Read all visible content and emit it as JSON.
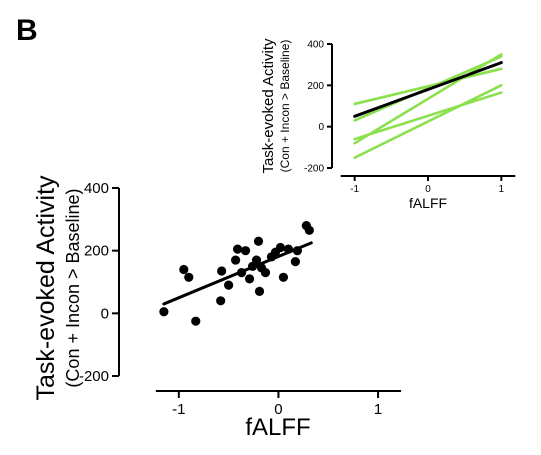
{
  "panel_label": "B",
  "chart_data": [
    {
      "type": "scatter",
      "xlabel": "fALFF",
      "ylabel": "Task-evoked Activity",
      "ylabel_sub": "(Con + Incon > Baseline)",
      "xlim": [
        -1.45,
        1.15
      ],
      "ylim": [
        -200,
        400
      ],
      "xticks": [
        -1,
        0,
        1
      ],
      "yticks": [
        -200,
        0,
        200,
        400
      ],
      "points": [
        {
          "x": -1.15,
          "y": 5
        },
        {
          "x": -0.95,
          "y": 140
        },
        {
          "x": -0.9,
          "y": 115
        },
        {
          "x": -0.83,
          "y": -25
        },
        {
          "x": -0.58,
          "y": 40
        },
        {
          "x": -0.57,
          "y": 135
        },
        {
          "x": -0.5,
          "y": 90
        },
        {
          "x": -0.43,
          "y": 170
        },
        {
          "x": -0.41,
          "y": 205
        },
        {
          "x": -0.37,
          "y": 130
        },
        {
          "x": -0.33,
          "y": 200
        },
        {
          "x": -0.29,
          "y": 110
        },
        {
          "x": -0.26,
          "y": 150
        },
        {
          "x": -0.22,
          "y": 170
        },
        {
          "x": -0.2,
          "y": 230
        },
        {
          "x": -0.19,
          "y": 70
        },
        {
          "x": -0.17,
          "y": 145
        },
        {
          "x": -0.13,
          "y": 130
        },
        {
          "x": -0.07,
          "y": 180
        },
        {
          "x": -0.03,
          "y": 195
        },
        {
          "x": 0.02,
          "y": 210
        },
        {
          "x": 0.05,
          "y": 115
        },
        {
          "x": 0.1,
          "y": 205
        },
        {
          "x": 0.17,
          "y": 165
        },
        {
          "x": 0.19,
          "y": 200
        },
        {
          "x": 0.28,
          "y": 280
        },
        {
          "x": 0.31,
          "y": 265
        }
      ],
      "fit_line": {
        "x": [
          -1.15,
          0.33
        ],
        "y": [
          30,
          225
        ],
        "color": "#000000"
      },
      "point_color": "#000000"
    },
    {
      "type": "line",
      "xlabel": "fALFF",
      "ylabel": "Task-evoked Activity",
      "ylabel_sub": "(Con + Incon > Baseline)",
      "xlim": [
        -1.2,
        1.2
      ],
      "ylim": [
        -200,
        400
      ],
      "xticks": [
        -1,
        0,
        1
      ],
      "yticks": [
        -200,
        0,
        200,
        400
      ],
      "series": [
        {
          "x": [
            -1,
            1
          ],
          "y": [
            -150,
            200
          ],
          "color": "#8be04e"
        },
        {
          "x": [
            -1,
            1
          ],
          "y": [
            -80,
            350
          ],
          "color": "#8be04e"
        },
        {
          "x": [
            -1,
            1
          ],
          "y": [
            30,
            340
          ],
          "color": "#8be04e"
        },
        {
          "x": [
            -1,
            1
          ],
          "y": [
            110,
            280
          ],
          "color": "#8be04e"
        },
        {
          "x": [
            -1,
            1
          ],
          "y": [
            -60,
            165
          ],
          "color": "#8be04e"
        },
        {
          "x": [
            -1,
            1
          ],
          "y": [
            50,
            310
          ],
          "color": "#000000"
        }
      ]
    }
  ]
}
